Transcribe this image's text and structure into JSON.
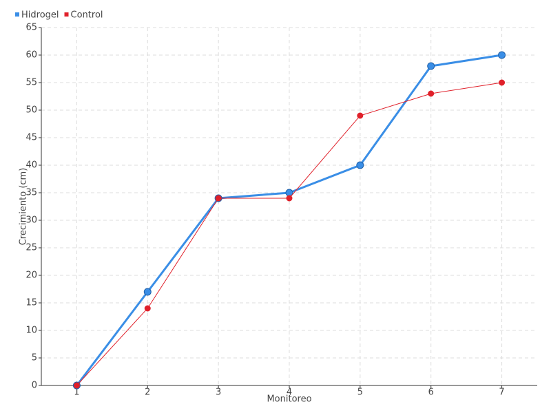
{
  "chart_data": {
    "type": "line",
    "categories": [
      "1",
      "2",
      "3",
      "4",
      "5",
      "6",
      "7"
    ],
    "series": [
      {
        "name": "Hidrogel",
        "color": "#3a8ee6",
        "values": [
          0,
          17,
          34,
          35,
          40,
          58,
          60
        ]
      },
      {
        "name": "Control",
        "color": "#e0202a",
        "values": [
          0,
          14,
          34,
          34,
          49,
          53,
          55
        ]
      }
    ],
    "xlabel": "Monitoreo",
    "ylabel": "Crecimiento (cm)",
    "ylim": [
      0,
      65
    ],
    "yticks": [
      0,
      5,
      10,
      15,
      20,
      25,
      30,
      35,
      40,
      45,
      50,
      55,
      60,
      65
    ],
    "grid": true,
    "legend": "top-left"
  }
}
